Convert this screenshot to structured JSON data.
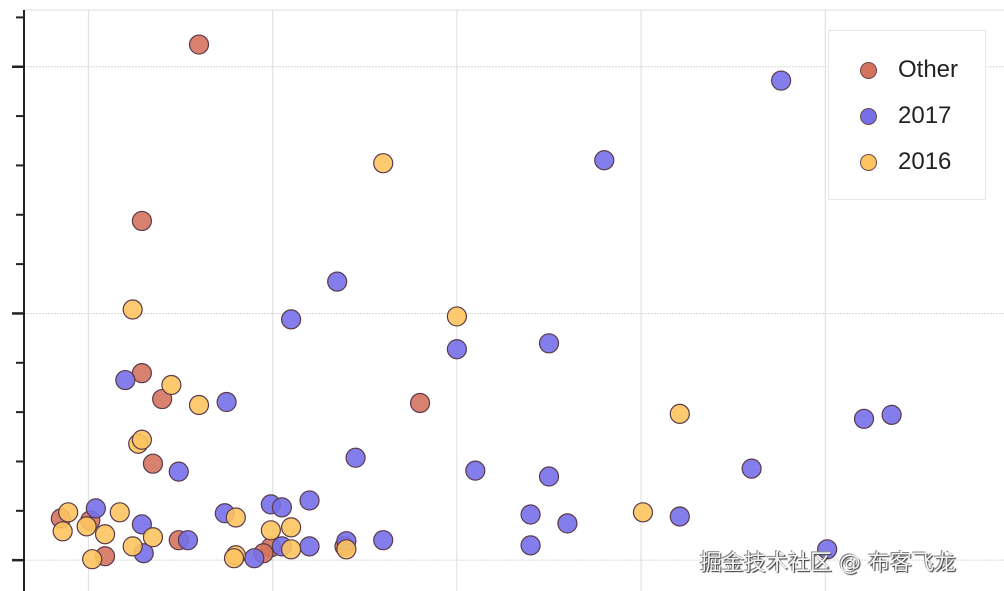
{
  "chart_data": {
    "type": "scatter",
    "title": "",
    "xlabel": "",
    "ylabel": "",
    "xlim": [
      0.65,
      5.97
    ],
    "ylim": [
      -0.125,
      2.23
    ],
    "grid": true,
    "legend_position": "top-right",
    "series": [
      {
        "name": "Other",
        "color": "#d4735e",
        "points": [
          [
            1.6,
            2.09
          ],
          [
            1.29,
            1.375
          ],
          [
            1.29,
            0.758
          ],
          [
            1.4,
            0.653
          ],
          [
            1.35,
            0.391
          ],
          [
            2.8,
            0.637
          ],
          [
            0.85,
            0.169
          ],
          [
            1.01,
            0.161
          ],
          [
            1.09,
            0.016
          ],
          [
            1.49,
            0.081
          ],
          [
            1.99,
            0.052
          ],
          [
            2.39,
            0.056
          ],
          [
            1.95,
            0.028
          ]
        ]
      },
      {
        "name": "2017",
        "color": "#7570ea",
        "points": [
          [
            4.76,
            1.944
          ],
          [
            3.8,
            1.621
          ],
          [
            2.35,
            1.129
          ],
          [
            2.1,
            0.976
          ],
          [
            3.0,
            0.855
          ],
          [
            3.5,
            0.879
          ],
          [
            1.2,
            0.73
          ],
          [
            1.75,
            0.641
          ],
          [
            1.49,
            0.359
          ],
          [
            2.45,
            0.415
          ],
          [
            3.1,
            0.363
          ],
          [
            3.5,
            0.339
          ],
          [
            4.6,
            0.371
          ],
          [
            5.21,
            0.573
          ],
          [
            5.36,
            0.589
          ],
          [
            1.04,
            0.21
          ],
          [
            1.29,
            0.145
          ],
          [
            1.3,
            0.028
          ],
          [
            1.54,
            0.081
          ],
          [
            1.74,
            0.19
          ],
          [
            1.99,
            0.226
          ],
          [
            2.05,
            0.214
          ],
          [
            2.2,
            0.242
          ],
          [
            2.05,
            0.056
          ],
          [
            2.4,
            0.077
          ],
          [
            2.6,
            0.081
          ],
          [
            3.4,
            0.185
          ],
          [
            3.4,
            0.06
          ],
          [
            3.6,
            0.149
          ],
          [
            4.21,
            0.177
          ],
          [
            5.01,
            0.044
          ],
          [
            1.9,
            0.008
          ],
          [
            2.2,
            0.056
          ]
        ]
      },
      {
        "name": "2016",
        "color": "#fdc45f",
        "points": [
          [
            1.24,
            1.016
          ],
          [
            2.6,
            1.609
          ],
          [
            3.0,
            0.988
          ],
          [
            1.45,
            0.71
          ],
          [
            1.6,
            0.629
          ],
          [
            1.27,
            0.472
          ],
          [
            1.29,
            0.488
          ],
          [
            0.89,
            0.194
          ],
          [
            0.86,
            0.117
          ],
          [
            0.99,
            0.137
          ],
          [
            1.09,
            0.105
          ],
          [
            1.17,
            0.194
          ],
          [
            1.24,
            0.056
          ],
          [
            1.35,
            0.093
          ],
          [
            1.02,
            0.004
          ],
          [
            1.8,
            0.173
          ],
          [
            1.8,
            0.02
          ],
          [
            1.79,
            0.008
          ],
          [
            1.99,
            0.121
          ],
          [
            2.1,
            0.133
          ],
          [
            2.1,
            0.044
          ],
          [
            2.4,
            0.044
          ],
          [
            4.01,
            0.194
          ],
          [
            4.21,
            0.593
          ]
        ]
      }
    ],
    "x_gridlines": [
      1,
      2,
      3,
      4,
      5
    ],
    "y_major_ticks": [
      0,
      1,
      2
    ],
    "y_minor_tick_step": 0.2
  },
  "watermark": "掘金技术社区 @ 布客飞龙"
}
